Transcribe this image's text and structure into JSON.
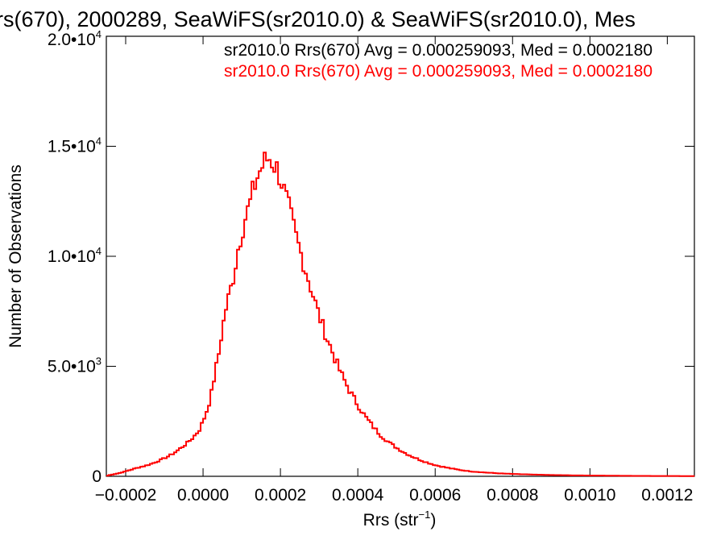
{
  "chart_data": {
    "type": "histogram-step",
    "title": "rs(670), 2000289, SeaWiFS(sr2010.0) & SeaWiFS(sr2010.0), Mes",
    "xlabel": "Rrs (str",
    "xlabel_sup": "−1",
    "xlabel_close": ")",
    "ylabel": "Number of Observations",
    "xlim": [
      -0.00025,
      0.00127
    ],
    "ylim": [
      0,
      20000
    ],
    "x_ticks": [
      {
        "value": -0.0002,
        "label": "−0.0002"
      },
      {
        "value": 0.0,
        "label": "0.0000"
      },
      {
        "value": 0.0002,
        "label": "0.0002"
      },
      {
        "value": 0.0004,
        "label": "0.0004"
      },
      {
        "value": 0.0006,
        "label": "0.0006"
      },
      {
        "value": 0.0008,
        "label": "0.0008"
      },
      {
        "value": 0.001,
        "label": "0.0010"
      },
      {
        "value": 0.0012,
        "label": "0.0012"
      }
    ],
    "y_ticks": [
      {
        "value": 0,
        "base": "0",
        "exp": ""
      },
      {
        "value": 5000,
        "base": "5.0•10",
        "exp": "3"
      },
      {
        "value": 10000,
        "base": "1.0•10",
        "exp": "4"
      },
      {
        "value": 15000,
        "base": "1.5•10",
        "exp": "4"
      },
      {
        "value": 20000,
        "base": "2.0•10",
        "exp": "4"
      }
    ],
    "grid": false,
    "legend_position": "top-right",
    "annotations": [
      {
        "text": "sr2010.0 Rrs(670) Avg = 0.000259093, Med = 0.0002180",
        "color": "#000000"
      },
      {
        "text": "sr2010.0 Rrs(670) Avg = 0.000259093, Med = 0.0002180",
        "color": "#ff0000"
      }
    ],
    "series": [
      {
        "color": "#ff0000",
        "bin_width": 6.25e-06,
        "points": [
          [
            -0.00025,
            20
          ],
          [
            -0.000235,
            80
          ],
          [
            -0.00022,
            130
          ],
          [
            -0.000205,
            200
          ],
          [
            -0.00019,
            280
          ],
          [
            -0.000175,
            360
          ],
          [
            -0.00016,
            430
          ],
          [
            -0.000145,
            500
          ],
          [
            -0.00013,
            590
          ],
          [
            -0.000115,
            700
          ],
          [
            -0.0001,
            820
          ],
          [
            -8.5e-05,
            950
          ],
          [
            -7e-05,
            1120
          ],
          [
            -5.5e-05,
            1320
          ],
          [
            -4e-05,
            1520
          ],
          [
            -2.5e-05,
            1780
          ],
          [
            -1e-05,
            2100
          ],
          [
            0.0,
            2500
          ],
          [
            1e-05,
            3000
          ],
          [
            2e-05,
            3600
          ],
          [
            3e-05,
            4600
          ],
          [
            4e-05,
            5500
          ],
          [
            5e-05,
            6700
          ],
          [
            6e-05,
            7700
          ],
          [
            7e-05,
            8400
          ],
          [
            8e-05,
            9200
          ],
          [
            9e-05,
            10300
          ],
          [
            0.0001,
            11100
          ],
          [
            0.00011,
            11800
          ],
          [
            0.00012,
            12300
          ],
          [
            0.00013,
            13000
          ],
          [
            0.00014,
            13600
          ],
          [
            0.00015,
            14000
          ],
          [
            0.00016,
            14300
          ],
          [
            0.00017,
            14500
          ],
          [
            0.00018,
            14300
          ],
          [
            0.00019,
            14000
          ],
          [
            0.0002,
            13600
          ],
          [
            0.00021,
            12900
          ],
          [
            0.00022,
            12300
          ],
          [
            0.00023,
            11600
          ],
          [
            0.00024,
            10900
          ],
          [
            0.00025,
            10300
          ],
          [
            0.00026,
            9700
          ],
          [
            0.00027,
            9100
          ],
          [
            0.00028,
            8500
          ],
          [
            0.00029,
            7900
          ],
          [
            0.0003,
            7300
          ],
          [
            0.00031,
            6800
          ],
          [
            0.00032,
            6300
          ],
          [
            0.00033,
            5850
          ],
          [
            0.00034,
            5400
          ],
          [
            0.00035,
            4950
          ],
          [
            0.00036,
            4550
          ],
          [
            0.00037,
            4200
          ],
          [
            0.00038,
            3850
          ],
          [
            0.00039,
            3550
          ],
          [
            0.0004,
            3250
          ],
          [
            0.00042,
            2700
          ],
          [
            0.00044,
            2250
          ],
          [
            0.00046,
            1850
          ],
          [
            0.00048,
            1550
          ],
          [
            0.0005,
            1300
          ],
          [
            0.00052,
            1080
          ],
          [
            0.00054,
            900
          ],
          [
            0.00056,
            750
          ],
          [
            0.00058,
            620
          ],
          [
            0.0006,
            510
          ],
          [
            0.00062,
            430
          ],
          [
            0.00064,
            360
          ],
          [
            0.00066,
            300
          ],
          [
            0.00068,
            250
          ],
          [
            0.0007,
            210
          ],
          [
            0.00074,
            160
          ],
          [
            0.00078,
            120
          ],
          [
            0.00082,
            95
          ],
          [
            0.00086,
            75
          ],
          [
            0.0009,
            60
          ],
          [
            0.00095,
            45
          ],
          [
            0.001,
            35
          ],
          [
            0.00105,
            28
          ],
          [
            0.0011,
            22
          ],
          [
            0.00115,
            17
          ],
          [
            0.0012,
            13
          ],
          [
            0.00127,
            10
          ]
        ]
      }
    ]
  }
}
